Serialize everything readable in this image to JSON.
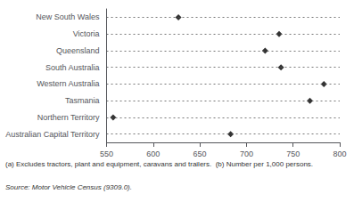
{
  "chart_data": {
    "type": "dot",
    "categories": [
      "New South Wales",
      "Victoria",
      "Queensland",
      "South Australia",
      "Western Australia",
      "Tasmania",
      "Northern Territory",
      "Australian Capital Territory"
    ],
    "values": [
      627,
      735,
      720,
      737,
      783,
      768,
      557,
      683
    ],
    "color": "#000000",
    "marker": "diamond",
    "line_style": "dashed",
    "xlim": [
      550,
      800
    ],
    "xticks": [
      550,
      600,
      650,
      700,
      750,
      800
    ],
    "annotations": [
      "(a) Excludes tractors, plant and equipment, caravans and trailers.  (b) Number per 1,000 persons.",
      "Source: Motor Vehicle Census (9309.0)."
    ]
  }
}
